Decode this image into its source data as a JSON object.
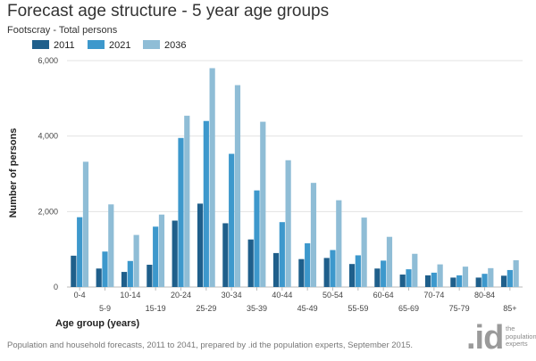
{
  "title": "Forecast age structure - 5 year age groups",
  "subtitle": "Footscray - Total persons",
  "source_note": "Population and household forecasts, 2011 to 2041, prepared by .id the population experts, September 2015.",
  "logo": {
    "mark": ".id",
    "tagline": [
      "the",
      "population",
      "experts"
    ]
  },
  "chart_data": {
    "type": "bar",
    "xlabel": "Age group (years)",
    "ylabel": "Number of persons",
    "ylim": [
      0,
      6000
    ],
    "yticks": [
      0,
      2000,
      4000,
      6000
    ],
    "ytick_labels": [
      "0",
      "2,000",
      "4,000",
      "6,000"
    ],
    "grid": true,
    "legend_position": "top-left",
    "categories": [
      "0-4",
      "5-9",
      "10-14",
      "15-19",
      "20-24",
      "25-29",
      "30-34",
      "35-39",
      "40-44",
      "45-49",
      "50-54",
      "55-59",
      "60-64",
      "65-69",
      "70-74",
      "75-79",
      "80-84",
      "85+"
    ],
    "series": [
      {
        "name": "2011",
        "color": "#1f5f8b",
        "values": [
          830,
          490,
          400,
          590,
          1760,
          2210,
          1690,
          1260,
          900,
          740,
          770,
          610,
          490,
          330,
          310,
          250,
          250,
          300
        ]
      },
      {
        "name": "2021",
        "color": "#3d98cc",
        "values": [
          1850,
          940,
          690,
          1600,
          3950,
          4400,
          3530,
          2560,
          1720,
          1160,
          980,
          840,
          700,
          470,
          380,
          310,
          350,
          450
        ]
      },
      {
        "name": "2036",
        "color": "#8fbdd6",
        "values": [
          3320,
          2190,
          1380,
          1920,
          4540,
          5800,
          5350,
          4380,
          3360,
          2760,
          2300,
          1840,
          1330,
          880,
          600,
          540,
          500,
          710
        ]
      }
    ]
  }
}
